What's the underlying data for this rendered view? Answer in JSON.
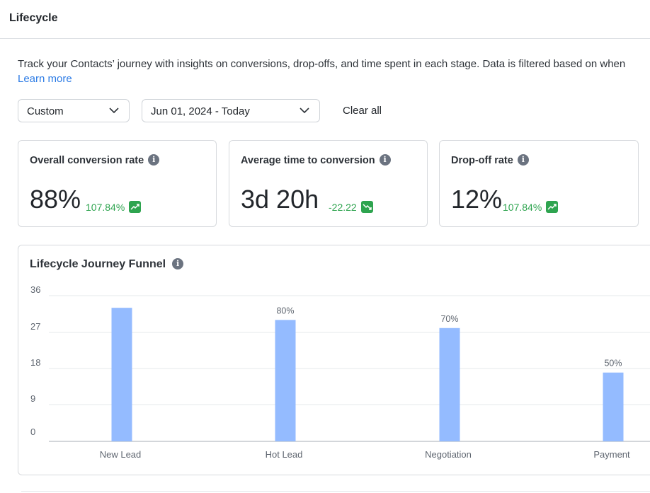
{
  "header": {
    "title": "Lifecycle"
  },
  "intro": {
    "description": "Track your Contacts’ journey with insights on conversions, drop-offs, and time spent in each stage. Data is filtered based on when",
    "learn_more": "Learn more"
  },
  "filters": {
    "range_type": "Custom",
    "date_range": "Jun 01, 2024 - Today",
    "clear_all": "Clear all"
  },
  "metrics": [
    {
      "title": "Overall conversion rate",
      "value": "88%",
      "change": "107.84%",
      "trend": "up",
      "trend_icon": "trend-up-icon"
    },
    {
      "title": "Average time to conversion",
      "value": "3d 20h",
      "change": "-22.22",
      "trend": "down",
      "trend_icon": "trend-down-icon"
    },
    {
      "title": "Drop-off rate",
      "value": "12%",
      "change": "107.84%",
      "trend": "up",
      "trend_icon": "trend-up-icon"
    }
  ],
  "colors": {
    "accent_link": "#2c7be5",
    "positive": "#2ea44f",
    "bar": "#94bbff",
    "info_icon": "#6b7380"
  },
  "funnel": {
    "title": "Lifecycle Journey Funnel",
    "info_icon": "info-icon"
  },
  "chart_data": {
    "type": "bar",
    "categories": [
      "New Lead",
      "Hot Lead",
      "Negotiation",
      "Payment"
    ],
    "values": [
      33,
      30,
      28,
      17
    ],
    "data_labels": [
      "",
      "80%",
      "70%",
      "50%"
    ],
    "yticks": [
      "0",
      "9",
      "18",
      "27",
      "36"
    ],
    "ylim": [
      0,
      36
    ],
    "grid": true,
    "title": "",
    "xlabel": "",
    "ylabel": ""
  }
}
